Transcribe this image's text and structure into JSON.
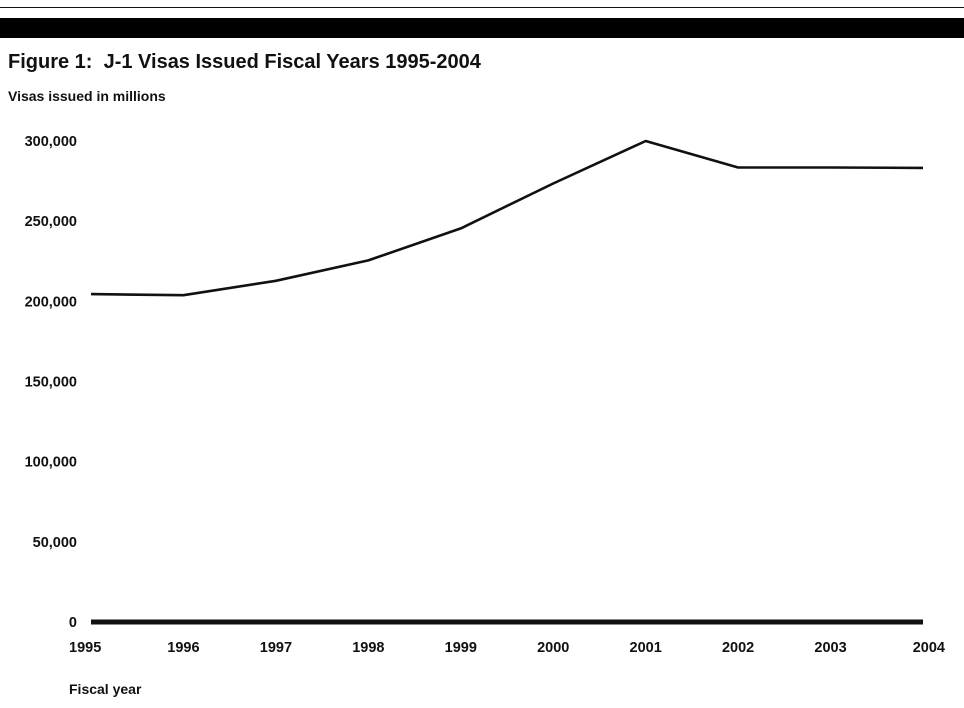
{
  "title": "Figure 1:  J-1 Visas Issued Fiscal Years 1995-2004",
  "chart_data": {
    "type": "line",
    "title": "Figure 1:  J-1 Visas Issued Fiscal Years 1995-2004",
    "ylabel": "Visas issued in millions",
    "xlabel": "Fiscal year",
    "x": [
      "1995",
      "1996",
      "1997",
      "1998",
      "1999",
      "2000",
      "2001",
      "2002",
      "2003",
      "2004"
    ],
    "series": [
      {
        "values": [
          204500,
          203800,
          212800,
          225500,
          245500,
          273500,
          300000,
          283500,
          283500,
          283200
        ]
      }
    ],
    "ylim": [
      0,
      300000
    ],
    "yticks": [
      0,
      50000,
      100000,
      150000,
      200000,
      250000,
      300000
    ],
    "ytick_labels": [
      "0",
      "50,000",
      "100,000",
      "150,000",
      "200,000",
      "250,000",
      "300,000"
    ],
    "grid": false,
    "legend": false,
    "line_color": "#111111"
  }
}
